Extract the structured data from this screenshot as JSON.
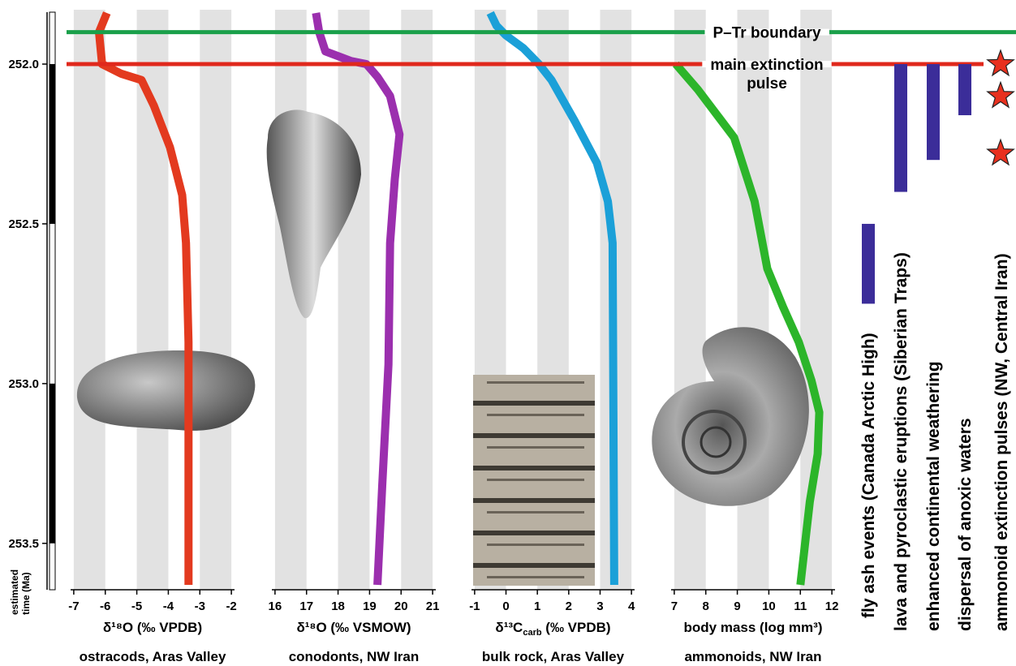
{
  "chart_data": [
    {
      "type": "line",
      "x_label": "δ¹⁸O (‰  VPDB)",
      "subtitle": "ostracods, Aras Valley",
      "color": "#e33a1f",
      "xlim": [
        -7.1,
        -1.9
      ],
      "xticks": [
        -7,
        -6,
        -5,
        -4,
        -3,
        -2
      ],
      "ylim": [
        251.84,
        253.63
      ],
      "yticks": [
        {
          "value": 252,
          "label": "252.0"
        },
        252.5,
        {
          "value": 253,
          "label": "253.0"
        },
        253.5
      ],
      "y_label": [
        "estimated",
        "time (Ma)"
      ],
      "values": [
        -5.95,
        -6.2,
        -6.1,
        -5.5,
        -4.85,
        -4.46,
        -3.95,
        -3.56,
        -3.44,
        -3.36,
        -3.36
      ],
      "time": [
        251.84,
        251.9,
        252.0,
        252.03,
        252.05,
        252.13,
        252.26,
        252.41,
        252.56,
        252.87,
        253.63
      ]
    },
    {
      "type": "line",
      "x_label": "δ¹⁸O (‰ VSMOW)",
      "subtitle": "conodonts, NW Iran",
      "color": "#9b2fae",
      "xlim": [
        15.9,
        21.1
      ],
      "xticks": [
        16,
        17,
        18,
        19,
        20,
        21
      ],
      "ylim": [
        251.84,
        253.63
      ],
      "values": [
        17.3,
        17.4,
        17.6,
        18.4,
        18.9,
        19.25,
        19.65,
        19.95,
        19.8,
        19.65,
        19.6,
        19.4,
        19.25
      ],
      "time": [
        251.84,
        251.9,
        251.96,
        251.99,
        252.0,
        252.04,
        252.1,
        252.22,
        252.36,
        252.56,
        252.94,
        253.32,
        253.63
      ]
    },
    {
      "type": "line",
      "x_label": [
        "δ¹³C",
        "carb",
        " (‰ VPDB)"
      ],
      "subtitle": "bulk rock, Aras Valley",
      "color": "#1ba0d8",
      "xlim": [
        -1.1,
        4.1
      ],
      "xticks": [
        -1,
        0,
        1,
        2,
        3,
        4
      ],
      "ylim": [
        251.84,
        253.63
      ],
      "values": [
        -0.5,
        -0.3,
        0.0,
        0.55,
        1.05,
        1.45,
        2.2,
        2.9,
        3.25,
        3.4,
        3.45
      ],
      "time": [
        251.84,
        251.88,
        251.91,
        251.95,
        252.0,
        252.05,
        252.18,
        252.31,
        252.43,
        252.56,
        253.63
      ]
    },
    {
      "type": "line",
      "x_label": "body mass (log mm³)",
      "subtitle": "ammonoids, NW Iran",
      "color": "#2cb52a",
      "xlim": [
        6.9,
        12.1
      ],
      "xticks": [
        7,
        8,
        9,
        10,
        11,
        12
      ],
      "ylim": [
        251.84,
        253.63
      ],
      "values": [
        7.05,
        7.75,
        8.9,
        9.55,
        9.95,
        10.45,
        10.95,
        11.35,
        11.6,
        11.55,
        11.3,
        11.0
      ],
      "time": [
        252.0,
        252.08,
        252.23,
        252.43,
        252.64,
        252.76,
        252.87,
        252.99,
        253.09,
        253.22,
        253.37,
        253.63
      ]
    },
    {
      "type": "events",
      "ylim": [
        251.84,
        253.63
      ],
      "reference_lines": [
        {
          "label": [
            "P–Tr boundary"
          ],
          "value": 251.9,
          "color": "#1aa04a"
        },
        {
          "label": [
            "main extinction",
            "pulse"
          ],
          "value": 252.0,
          "color": "#e0281c"
        }
      ],
      "bar_color": "#3b2d99",
      "bars": [
        {
          "label": "fly ash events (Canada Arctic High)",
          "start": 252.5,
          "end": 252.75
        },
        {
          "label": "lava and pyroclastic eruptions (Siberian Traps)",
          "start": 252.0,
          "end": 252.4
        },
        {
          "label": "enhanced continental weathering",
          "start": 252.0,
          "end": 252.3
        },
        {
          "label": "dispersal of anoxic waters",
          "start": 252.0,
          "end": 252.16
        }
      ],
      "stars": {
        "label": "ammonoid extinction pulses (NW, Central Iran)",
        "color": "#e8301e",
        "values": [
          252.0,
          252.1,
          252.28
        ]
      }
    }
  ]
}
